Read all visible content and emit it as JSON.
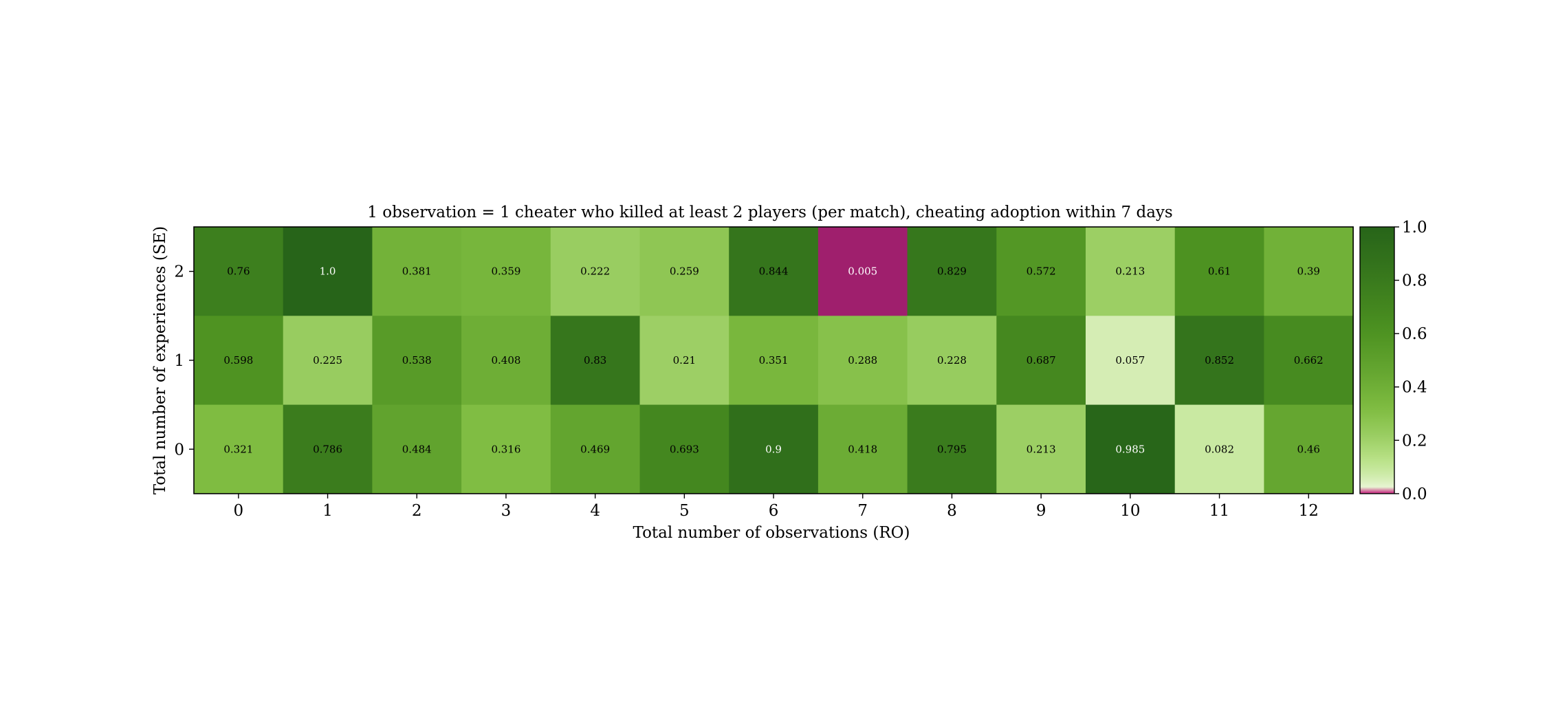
{
  "chart_data": {
    "type": "heatmap",
    "title": "1 observation = 1 cheater who killed at least 2 players (per match), cheating adoption within 7 days",
    "xlabel": "Total number of observations (RO)",
    "ylabel": "Total number of experiences (SE)",
    "x_categories": [
      "0",
      "1",
      "2",
      "3",
      "4",
      "5",
      "6",
      "7",
      "8",
      "9",
      "10",
      "11",
      "12"
    ],
    "y_categories": [
      "2",
      "1",
      "0"
    ],
    "values": [
      [
        0.76,
        1.0,
        0.381,
        0.359,
        0.222,
        0.259,
        0.844,
        0.005,
        0.829,
        0.572,
        0.213,
        0.61,
        0.39
      ],
      [
        0.598,
        0.225,
        0.538,
        0.408,
        0.83,
        0.21,
        0.351,
        0.288,
        0.228,
        0.687,
        0.057,
        0.852,
        0.662
      ],
      [
        0.321,
        0.786,
        0.484,
        0.316,
        0.469,
        0.693,
        0.9,
        0.418,
        0.795,
        0.213,
        0.985,
        0.082,
        0.46
      ]
    ],
    "cell_labels": [
      [
        "0.76",
        "1.0",
        "0.381",
        "0.359",
        "0.222",
        "0.259",
        "0.844",
        "0.005",
        "0.829",
        "0.572",
        "0.213",
        "0.61",
        "0.39"
      ],
      [
        "0.598",
        "0.225",
        "0.538",
        "0.408",
        "0.83",
        "0.21",
        "0.351",
        "0.288",
        "0.228",
        "0.687",
        "0.057",
        "0.852",
        "0.662"
      ],
      [
        "0.321",
        "0.786",
        "0.484",
        "0.316",
        "0.469",
        "0.693",
        "0.9",
        "0.418",
        "0.795",
        "0.213",
        "0.985",
        "0.082",
        "0.46"
      ]
    ],
    "colorbar": {
      "range": [
        0.0,
        1.0
      ],
      "ticks": [
        "0.0",
        "0.2",
        "0.4",
        "0.6",
        "0.8",
        "1.0"
      ],
      "tick_values": [
        0.0,
        0.2,
        0.4,
        0.6,
        0.8,
        1.0
      ]
    },
    "colors": {
      "low": "#c51b7d",
      "mid": "#f7f7f7",
      "high": "#276419",
      "label_dark": "#000000",
      "label_light": "#ffffff"
    }
  }
}
